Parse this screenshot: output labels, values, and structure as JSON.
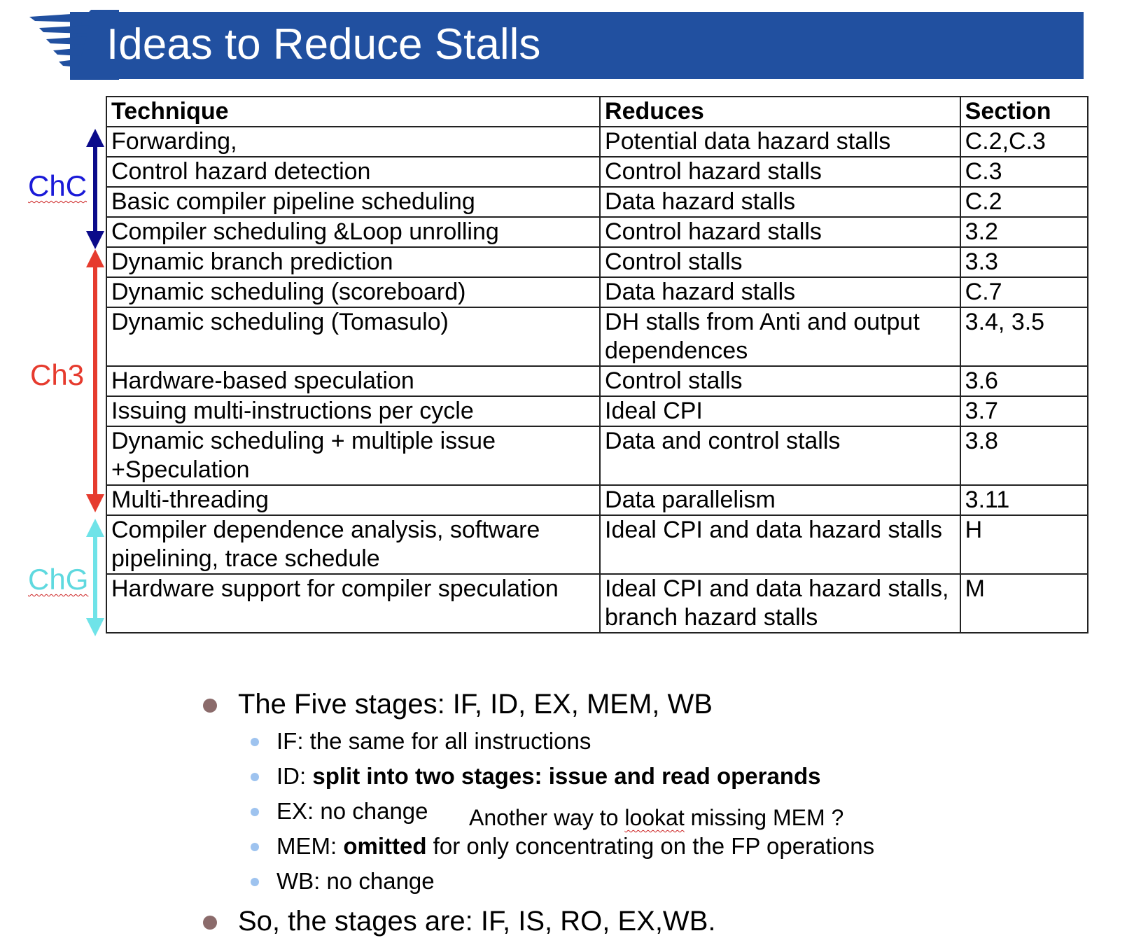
{
  "slide": {
    "title": "Ideas to Reduce Stalls"
  },
  "table": {
    "headers": [
      "Technique",
      "Reduces",
      "Section"
    ],
    "rows": [
      {
        "technique": "Forwarding,",
        "reduces": "Potential data hazard stalls",
        "section": "C.2,C.3"
      },
      {
        "technique": "Control hazard detection",
        "reduces": "Control hazard stalls",
        "section": "C.3"
      },
      {
        "technique": "Basic compiler pipeline scheduling",
        "reduces": "Data hazard stalls",
        "section": "C.2"
      },
      {
        "technique": "Compiler scheduling &Loop unrolling",
        "reduces": "Control hazard stalls",
        "section": "3.2"
      },
      {
        "technique": "Dynamic branch prediction",
        "reduces": "Control stalls",
        "section": "3.3"
      },
      {
        "technique": "Dynamic scheduling (scoreboard)",
        "reduces": "Data hazard stalls",
        "section": "C.7"
      },
      {
        "technique": "Dynamic scheduling (Tomasulo)",
        "reduces": "DH stalls from Anti and output dependences",
        "section": "3.4, 3.5"
      },
      {
        "technique": "Hardware-based speculation",
        "reduces": "Control stalls",
        "section": "3.6"
      },
      {
        "technique": "Issuing multi-instructions per cycle",
        "reduces": "Ideal CPI",
        "section": "3.7"
      },
      {
        "technique": "Dynamic scheduling + multiple issue +Speculation",
        "reduces": "Data and control stalls",
        "section": "3.8"
      },
      {
        "technique": "Multi-threading",
        "reduces": "Data parallelism",
        "section": "3.11"
      },
      {
        "technique": "Compiler dependence analysis, software pipelining, trace schedule",
        "reduces": "Ideal CPI and data hazard stalls",
        "section": "H"
      },
      {
        "technique": "Hardware support for compiler  speculation",
        "reduces": "Ideal CPI and data hazard stalls, branch hazard stalls",
        "section": "M"
      }
    ]
  },
  "chapters": [
    {
      "label": "ChC",
      "color": "#0b0b8a"
    },
    {
      "label": "Ch3",
      "color": "#e63b2e"
    },
    {
      "label": "ChG",
      "color": "#6fe3e8"
    }
  ],
  "bullets": {
    "main1": "The Five stages: IF, ID, EX, MEM, WB",
    "sub": [
      {
        "prefix": "IF: the same for all instructions",
        "bold": "",
        "suffix": ""
      },
      {
        "prefix": "ID: ",
        "bold": "split into two stages: issue and read operands",
        "suffix": ""
      },
      {
        "prefix": "EX: no change",
        "bold": "",
        "suffix": ""
      },
      {
        "prefix": "MEM: ",
        "bold": "omitted",
        "suffix": " for only concentrating on the FP operations"
      },
      {
        "prefix": "WB: no change",
        "bold": "",
        "suffix": ""
      }
    ],
    "main2": "So, the stages are: IF, IS, RO, EX,WB."
  },
  "note": {
    "before": "Another way to ",
    "wavy": "lookat",
    "after": " missing MEM ?"
  }
}
